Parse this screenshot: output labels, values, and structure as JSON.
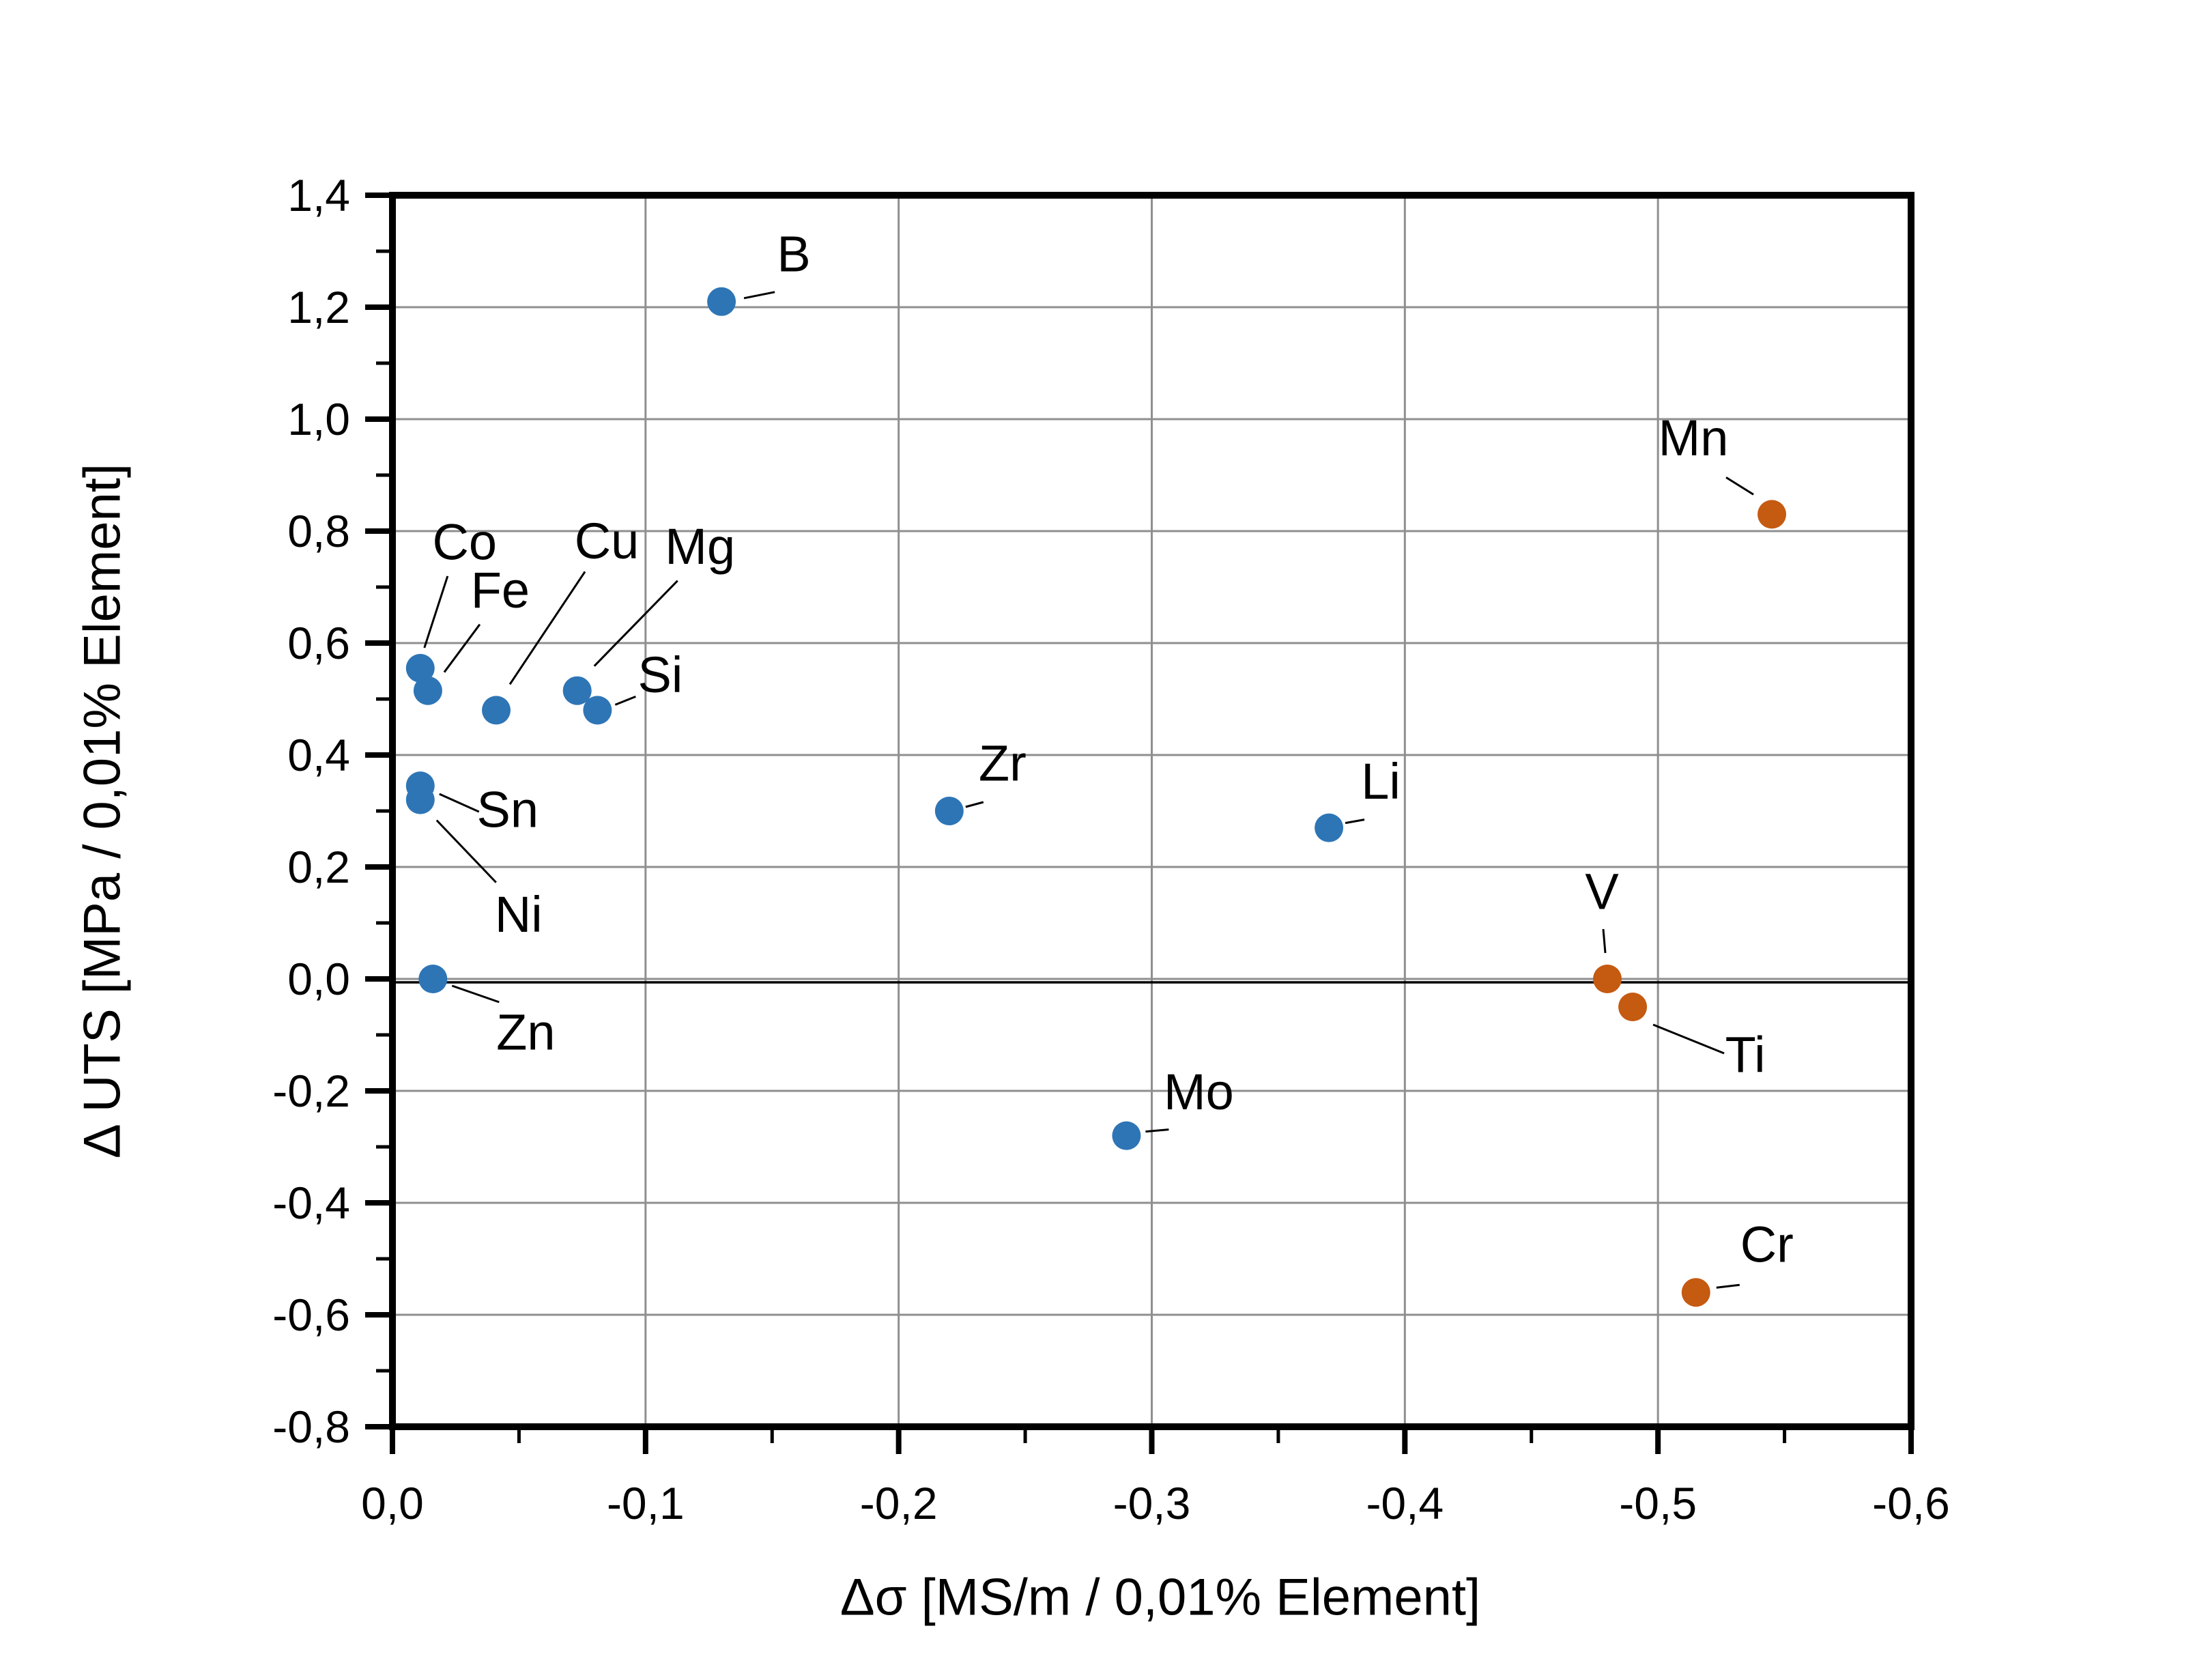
{
  "chart_data": {
    "type": "scatter",
    "title": "",
    "xlabel": "Δσ [MS/m / 0,01% Element]",
    "ylabel": "Δ UTS [MPa / 0,01% Element]",
    "xlim": [
      0.0,
      -0.6
    ],
    "ylim": [
      -0.8,
      1.4
    ],
    "x_major_step": 0.1,
    "x_minor_step": 0.05,
    "y_major_step": 0.2,
    "y_minor_step": 0.1,
    "grid": true,
    "legend": "none",
    "grid_color": "#8f8f8f",
    "axis_color": "#000000",
    "background_color": "#ffffff",
    "colors": {
      "blue": "#2E75B6",
      "orange": "#C55A11"
    },
    "x_ticks": [
      {
        "value": 0.0,
        "label": "0,0"
      },
      {
        "value": -0.1,
        "label": "-0,1"
      },
      {
        "value": -0.2,
        "label": "-0,2"
      },
      {
        "value": -0.3,
        "label": "-0,3"
      },
      {
        "value": -0.4,
        "label": "-0,4"
      },
      {
        "value": -0.5,
        "label": "-0,5"
      },
      {
        "value": -0.6,
        "label": "-0,6"
      }
    ],
    "y_ticks": [
      {
        "value": 1.4,
        "label": "1,4"
      },
      {
        "value": 1.2,
        "label": "1,2"
      },
      {
        "value": 1.0,
        "label": "1,0"
      },
      {
        "value": 0.8,
        "label": "0,8"
      },
      {
        "value": 0.6,
        "label": "0,6"
      },
      {
        "value": 0.4,
        "label": "0,4"
      },
      {
        "value": 0.2,
        "label": "0,2"
      },
      {
        "value": 0.0,
        "label": "0,0"
      },
      {
        "value": -0.2,
        "label": "-0,2"
      },
      {
        "value": -0.4,
        "label": "-0,4"
      },
      {
        "value": -0.6,
        "label": "-0,6"
      },
      {
        "value": -0.8,
        "label": "-0,8"
      }
    ],
    "points": [
      {
        "label": "B",
        "x": -0.13,
        "y": 1.21,
        "color": "blue",
        "label_offset": [
          106,
          -70
        ],
        "leader": [
          [
            33,
            -5
          ],
          [
            78,
            -14
          ]
        ]
      },
      {
        "label": "Co",
        "x": -0.011,
        "y": 0.555,
        "color": "blue",
        "label_offset": [
          65,
          -185
        ],
        "leader": [
          [
            40,
            -135
          ],
          [
            6,
            -30
          ]
        ]
      },
      {
        "label": "Fe",
        "x": -0.014,
        "y": 0.515,
        "color": "blue",
        "label_offset": [
          106,
          -147
        ],
        "leader": [
          [
            76,
            -97
          ],
          [
            24,
            -27
          ]
        ]
      },
      {
        "label": "Cu",
        "x": -0.041,
        "y": 0.48,
        "color": "blue",
        "label_offset": [
          162,
          -248
        ],
        "leader": [
          [
            130,
            -203
          ],
          [
            20,
            -38
          ]
        ]
      },
      {
        "label": "Mg",
        "x": -0.073,
        "y": 0.515,
        "color": "blue",
        "label_offset": [
          180,
          -211
        ],
        "leader": [
          [
            147,
            -161
          ],
          [
            25,
            -36
          ]
        ]
      },
      {
        "label": "Si",
        "x": -0.081,
        "y": 0.48,
        "color": "blue",
        "label_offset": [
          92,
          -52
        ],
        "leader": [
          [
            26,
            -8
          ],
          [
            56,
            -20
          ]
        ]
      },
      {
        "label": "Sn",
        "x": -0.011,
        "y": 0.345,
        "color": "blue",
        "label_offset": [
          128,
          35
        ],
        "leader": [
          [
            28,
            12
          ],
          [
            86,
            38
          ]
        ]
      },
      {
        "label": "Ni",
        "x": -0.011,
        "y": 0.32,
        "color": "blue",
        "label_offset": [
          144,
          168
        ],
        "leader": [
          [
            24,
            30
          ],
          [
            111,
            121
          ]
        ]
      },
      {
        "label": "Zn",
        "x": -0.016,
        "y": 0.0,
        "color": "blue",
        "label_offset": [
          136,
          78
        ],
        "leader": [
          [
            28,
            10
          ],
          [
            97,
            34
          ]
        ]
      },
      {
        "label": "Zr",
        "x": -0.22,
        "y": 0.3,
        "color": "blue",
        "label_offset": [
          78,
          -70
        ],
        "leader": [
          [
            24,
            -6
          ],
          [
            50,
            -13
          ]
        ]
      },
      {
        "label": "Li",
        "x": -0.37,
        "y": 0.27,
        "color": "blue",
        "label_offset": [
          76,
          -68
        ],
        "leader": [
          [
            24,
            -7
          ],
          [
            52,
            -12
          ]
        ]
      },
      {
        "label": "Mo",
        "x": -0.29,
        "y": -0.28,
        "color": "blue",
        "label_offset": [
          106,
          -64
        ],
        "leader": [
          [
            28,
            -6
          ],
          [
            62,
            -9
          ]
        ]
      },
      {
        "label": "Mn",
        "x": -0.545,
        "y": 0.83,
        "color": "orange",
        "label_offset": [
          -115,
          -112
        ],
        "leader": [
          [
            -67,
            -54
          ],
          [
            -27,
            -29
          ]
        ]
      },
      {
        "label": "V",
        "x": -0.48,
        "y": 0.0,
        "color": "orange",
        "label_offset": [
          -8,
          -128
        ],
        "leader": [
          [
            -6,
            -73
          ],
          [
            -3,
            -38
          ]
        ]
      },
      {
        "label": "Ti",
        "x": -0.49,
        "y": -0.05,
        "color": "orange",
        "label_offset": [
          165,
          70
        ],
        "leader": [
          [
            30,
            26
          ],
          [
            134,
            68
          ]
        ]
      },
      {
        "label": "Cr",
        "x": -0.515,
        "y": -0.56,
        "color": "orange",
        "label_offset": [
          104,
          -70
        ],
        "leader": [
          [
            30,
            -7
          ],
          [
            64,
            -11
          ]
        ]
      }
    ]
  }
}
